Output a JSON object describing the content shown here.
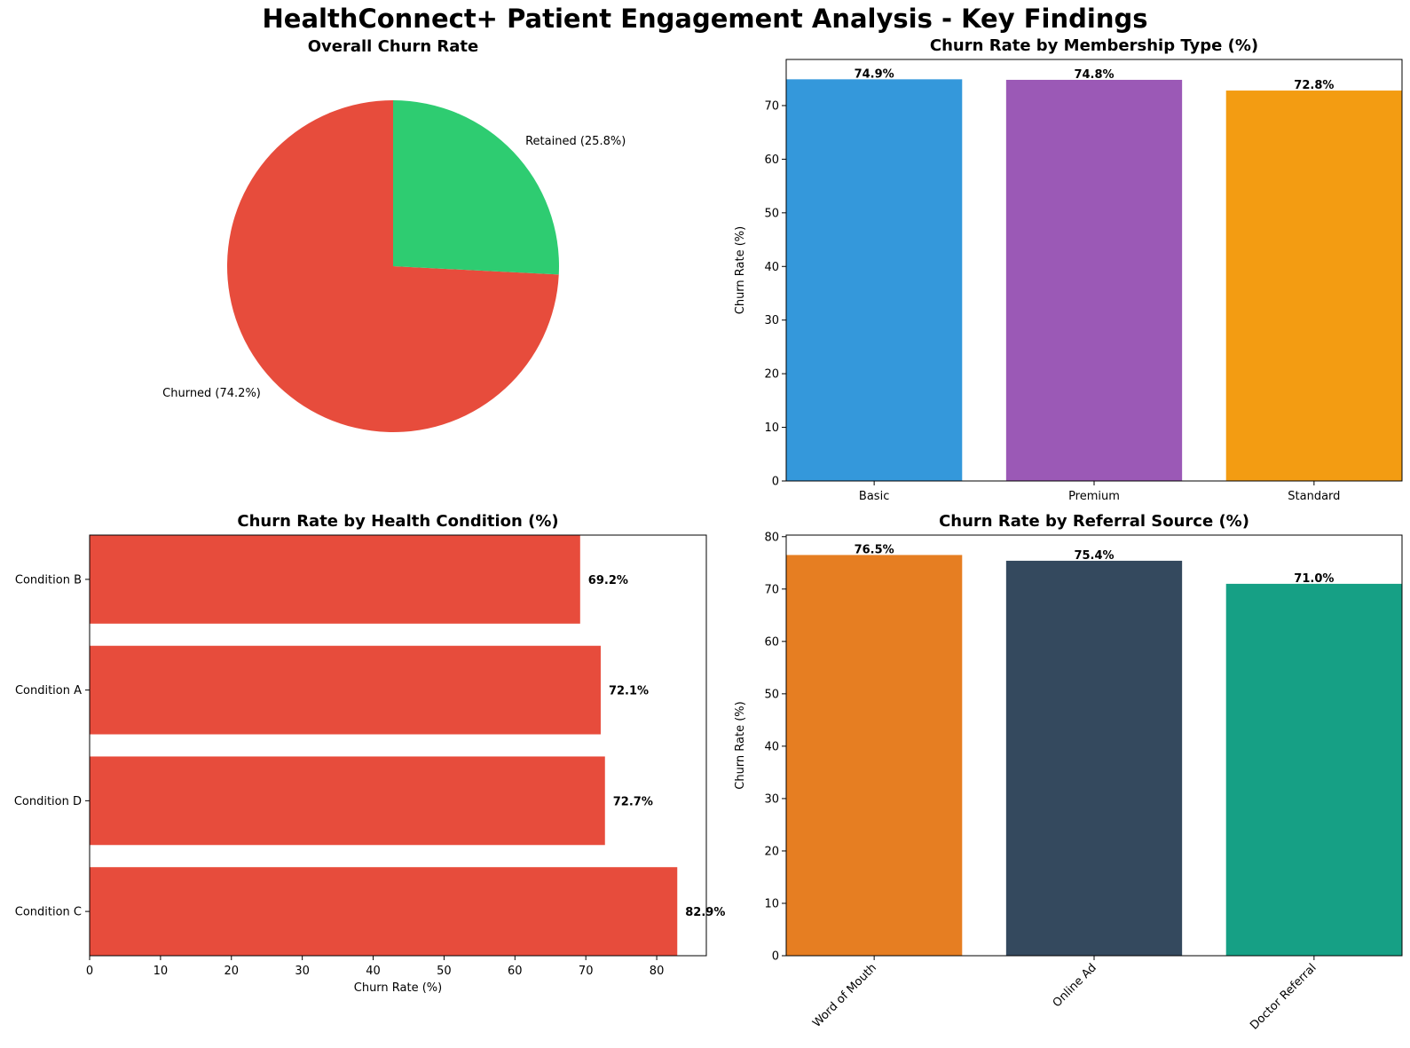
{
  "suptitle": "HealthConnect+ Patient Engagement Analysis - Key Findings",
  "chart_data": [
    {
      "type": "pie",
      "title": "Overall Churn Rate",
      "slices": [
        {
          "label": "Churned (74.2%)",
          "value": 74.2,
          "color": "#e74c3c"
        },
        {
          "label": "Retained (25.8%)",
          "value": 25.8,
          "color": "#2ecc71"
        }
      ],
      "start_angle_deg": 90,
      "direction": "counterclockwise"
    },
    {
      "type": "bar",
      "title": "Churn Rate by Membership Type (%)",
      "categories": [
        "Basic",
        "Premium",
        "Standard"
      ],
      "values": [
        74.9,
        74.8,
        72.8
      ],
      "data_labels": [
        "74.9%",
        "74.8%",
        "72.8%"
      ],
      "colors": [
        "#3498db",
        "#9b59b6",
        "#f39c12"
      ],
      "ylabel": "Churn Rate (%)",
      "xlabel": "",
      "ylim": [
        0,
        78.6
      ],
      "yticks": [
        0,
        10,
        20,
        30,
        40,
        50,
        60,
        70
      ],
      "grid": false
    },
    {
      "type": "bar",
      "orientation": "horizontal",
      "title": "Churn Rate by Health Condition (%)",
      "categories": [
        "Condition C",
        "Condition D",
        "Condition A",
        "Condition B"
      ],
      "values": [
        82.9,
        72.7,
        72.1,
        69.2
      ],
      "data_labels": [
        "82.9%",
        "72.7%",
        "72.1%",
        "69.2%"
      ],
      "colors": [
        "#e74c3c",
        "#e74c3c",
        "#e74c3c",
        "#e74c3c"
      ],
      "xlabel": "Churn Rate (%)",
      "ylabel": "",
      "xlim": [
        0,
        87.0
      ],
      "xticks": [
        0,
        10,
        20,
        30,
        40,
        50,
        60,
        70,
        80
      ],
      "grid": false
    },
    {
      "type": "bar",
      "title": "Churn Rate by Referral Source (%)",
      "categories": [
        "Word of Mouth",
        "Online Ad",
        "Doctor Referral"
      ],
      "values": [
        76.5,
        75.4,
        71.0
      ],
      "data_labels": [
        "76.5%",
        "75.4%",
        "71.0%"
      ],
      "colors": [
        "#e67e22",
        "#34495e",
        "#16a085"
      ],
      "ylabel": "Churn Rate (%)",
      "xlabel": "",
      "ylim": [
        0,
        80.3
      ],
      "yticks": [
        0,
        10,
        20,
        30,
        40,
        50,
        60,
        70,
        80
      ],
      "xtick_rotation": 45,
      "grid": false
    }
  ]
}
